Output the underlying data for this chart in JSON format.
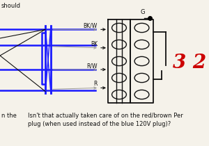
{
  "bg_color": "#f5f2ea",
  "title_text": "should",
  "bottom_text1": "n the",
  "bottom_text2": "Isn't that actually taken care of on the red/brown Per",
  "bottom_text3": "plug (when used instead of the blue 120V plug)?",
  "label_bkw": "BK/W",
  "label_bk": "BK",
  "label_rw": "R/W",
  "label_r": "R",
  "label_g": "G",
  "label_32": "3 2",
  "red_color": "#cc0000",
  "blue_color": "#1a1aff",
  "black_color": "#111111",
  "gray_color": "#999999"
}
